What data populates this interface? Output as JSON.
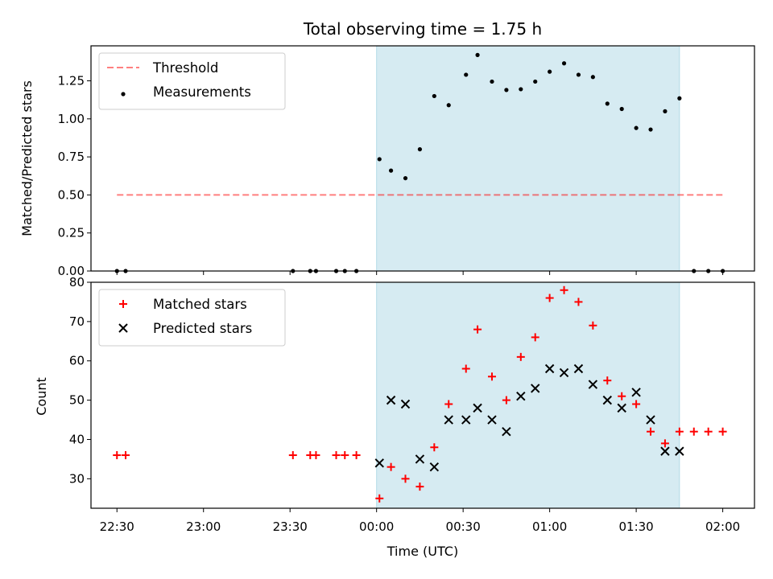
{
  "chart_data": [
    {
      "type": "scatter",
      "title": "Total observing time = 1.75 h",
      "xlabel": "",
      "ylabel": "Matched/Predicted stars",
      "ylim": [
        0,
        1.48
      ],
      "xlim": [
        "22:21",
        "02:11"
      ],
      "x_ticks": [
        "22:30",
        "23:00",
        "23:30",
        "00:00",
        "00:30",
        "01:00",
        "01:30",
        "02:00"
      ],
      "y_ticks": [
        "0.00",
        "0.25",
        "0.50",
        "0.75",
        "1.00",
        "1.25"
      ],
      "y_tick_values": [
        0,
        0.25,
        0.5,
        0.75,
        1.0,
        1.25
      ],
      "legend_position": "upper-left",
      "shaded_span": {
        "start": "00:00",
        "end": "01:45",
        "color": "#add8e6"
      },
      "threshold": {
        "name": "Threshold",
        "value": 0.5,
        "x_start": "22:30",
        "x_end": "02:00",
        "color": "#ff0000",
        "style": "dashed"
      },
      "series": [
        {
          "name": "Measurements",
          "marker": "dot",
          "color": "#000000",
          "x": [
            "22:30",
            "22:33",
            "23:31",
            "23:37",
            "23:39",
            "23:46",
            "23:49",
            "23:53",
            "00:01",
            "00:05",
            "00:10",
            "00:15",
            "00:20",
            "00:25",
            "00:31",
            "00:35",
            "00:40",
            "00:45",
            "00:50",
            "00:55",
            "01:00",
            "01:05",
            "01:10",
            "01:15",
            "01:20",
            "01:25",
            "01:30",
            "01:35",
            "01:40",
            "01:45",
            "01:50",
            "01:55",
            "02:00"
          ],
          "y": [
            0.0,
            0.0,
            0.0,
            0.0,
            0.0,
            0.0,
            0.0,
            0.0,
            0.735,
            0.66,
            0.61,
            0.8,
            1.15,
            1.09,
            1.29,
            1.42,
            1.245,
            1.19,
            1.195,
            1.245,
            1.31,
            1.365,
            1.29,
            1.275,
            1.1,
            1.065,
            0.94,
            0.93,
            1.05,
            1.135,
            0.0,
            0.0,
            0.0
          ]
        }
      ]
    },
    {
      "type": "scatter",
      "title": "",
      "xlabel": "Time (UTC)",
      "ylabel": "Count",
      "ylim": [
        22.5,
        80
      ],
      "xlim": [
        "22:21",
        "02:11"
      ],
      "x_ticks": [
        "22:30",
        "23:00",
        "23:30",
        "00:00",
        "00:30",
        "01:00",
        "01:30",
        "02:00"
      ],
      "y_ticks": [
        "30",
        "40",
        "50",
        "60",
        "70",
        "80"
      ],
      "y_tick_values": [
        30,
        40,
        50,
        60,
        70,
        80
      ],
      "legend_position": "upper-left",
      "shaded_span": {
        "start": "00:00",
        "end": "01:45",
        "color": "#add8e6"
      },
      "series": [
        {
          "name": "Matched stars",
          "marker": "plus",
          "color": "#ff0000",
          "x": [
            "22:30",
            "22:33",
            "23:31",
            "23:37",
            "23:39",
            "23:46",
            "23:49",
            "23:53",
            "00:01",
            "00:05",
            "00:10",
            "00:15",
            "00:20",
            "00:25",
            "00:31",
            "00:35",
            "00:40",
            "00:45",
            "00:50",
            "00:55",
            "01:00",
            "01:05",
            "01:10",
            "01:15",
            "01:20",
            "01:25",
            "01:30",
            "01:35",
            "01:40",
            "01:45",
            "01:50",
            "01:55",
            "02:00"
          ],
          "y": [
            36,
            36,
            36,
            36,
            36,
            36,
            36,
            36,
            25,
            33,
            30,
            28,
            38,
            49,
            58,
            68,
            56,
            50,
            61,
            66,
            76,
            78,
            75,
            69,
            55,
            51,
            49,
            42,
            39,
            42,
            42,
            42,
            42
          ]
        },
        {
          "name": "Predicted stars",
          "marker": "x",
          "color": "#000000",
          "x": [
            "00:01",
            "00:05",
            "00:10",
            "00:15",
            "00:20",
            "00:25",
            "00:31",
            "00:35",
            "00:40",
            "00:45",
            "00:50",
            "00:55",
            "01:00",
            "01:05",
            "01:10",
            "01:15",
            "01:20",
            "01:25",
            "01:30",
            "01:35",
            "01:40",
            "01:45"
          ],
          "y": [
            34,
            50,
            49,
            35,
            33,
            45,
            45,
            48,
            45,
            42,
            51,
            53,
            58,
            57,
            58,
            54,
            50,
            48,
            52,
            45,
            37,
            37
          ]
        }
      ]
    }
  ]
}
